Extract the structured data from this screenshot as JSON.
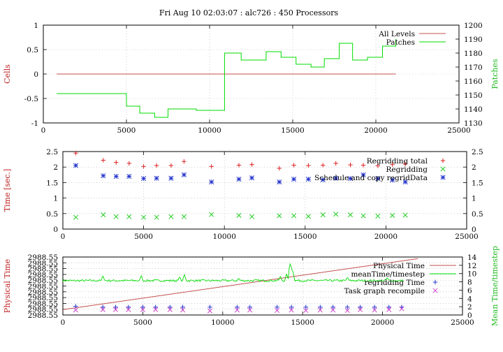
{
  "title": "Fri Aug 10 02:03:07 : alc726 : 450 Processors",
  "chart_data": [
    {
      "type": "line",
      "xlim": [
        0,
        25000
      ],
      "xticks": [
        "0",
        "5000",
        "10000",
        "15000",
        "20000",
        "25000"
      ],
      "ylabel": "Cells",
      "ylim": [
        -1,
        1
      ],
      "yticks": [
        "-1",
        "-0.5",
        "0",
        "0.5",
        "1"
      ],
      "y2label": "Patches",
      "y2lim": [
        1130,
        1200
      ],
      "y2ticks": [
        "1130",
        "1140",
        "1150",
        "1160",
        "1170",
        "1180",
        "1190",
        "1200"
      ],
      "grid": true,
      "legend_position": "top-right",
      "series": [
        {
          "name": "All Levels",
          "axis": "left",
          "color": "#c0504d",
          "style": "line",
          "x": [
            800,
            21200
          ],
          "y": [
            0,
            0
          ]
        },
        {
          "name": "Patches",
          "axis": "right",
          "color": "#00dd00",
          "style": "step",
          "x": [
            800,
            4100,
            5000,
            5800,
            6700,
            7500,
            9200,
            10900,
            11900,
            13400,
            14300,
            15200,
            16100,
            16900,
            17800,
            18600,
            19500,
            20400,
            21200
          ],
          "y": [
            1151,
            1151,
            1142,
            1137,
            1134,
            1140,
            1139,
            1180,
            1175,
            1181,
            1177,
            1172,
            1170,
            1176,
            1187,
            1175,
            1177,
            1185,
            1190
          ]
        }
      ]
    },
    {
      "type": "scatter",
      "xlim": [
        0,
        25000
      ],
      "xticks": [
        "0",
        "5000",
        "10000",
        "15000",
        "20000",
        "25000"
      ],
      "ylabel": "Time [sec.]",
      "ylim": [
        0,
        2.5
      ],
      "yticks": [
        "0",
        "0.5",
        "1",
        "1.5",
        "2",
        "2.5"
      ],
      "y2lim": [
        0,
        2.5
      ],
      "y2ticks": [
        "0",
        "0.5",
        "1",
        "1.5",
        "2",
        "2.5"
      ],
      "grid": true,
      "legend_position": "top-right",
      "x": [
        800,
        2500,
        3300,
        4100,
        5000,
        5800,
        6700,
        7500,
        9200,
        10900,
        11700,
        13400,
        14300,
        15200,
        16100,
        16900,
        17800,
        18600,
        19500,
        20400,
        21200
      ],
      "series": [
        {
          "name": "Regridding total",
          "marker": "plus",
          "color": "#dd2222",
          "y": [
            2.45,
            2.22,
            2.15,
            2.12,
            2.02,
            2.05,
            2.05,
            2.18,
            2.02,
            2.06,
            2.08,
            1.96,
            2.06,
            2.05,
            2.06,
            2.12,
            2.07,
            2.06,
            2.04,
            2.08,
            2.1
          ]
        },
        {
          "name": "Regridding",
          "marker": "cross",
          "color": "#22cc22",
          "y": [
            0.38,
            0.46,
            0.4,
            0.4,
            0.38,
            0.38,
            0.4,
            0.4,
            0.47,
            0.44,
            0.4,
            0.43,
            0.43,
            0.41,
            0.46,
            0.48,
            0.46,
            0.43,
            0.42,
            0.44,
            0.45
          ]
        },
        {
          "name": "Schedule and copy regridData",
          "marker": "star",
          "color": "#2233cc",
          "y": [
            2.05,
            1.72,
            1.7,
            1.7,
            1.63,
            1.64,
            1.64,
            1.75,
            1.52,
            1.61,
            1.65,
            1.52,
            1.61,
            1.61,
            1.59,
            1.64,
            1.63,
            1.75,
            1.63,
            1.58,
            1.52
          ]
        }
      ]
    },
    {
      "type": "line",
      "xlim": [
        0,
        25000
      ],
      "xticks": [
        "0",
        "5000",
        "10000",
        "15000",
        "20000",
        "25000"
      ],
      "ylabel": "Physical Time",
      "yticks": [
        "2988.55",
        "2988.55",
        "2988.55",
        "2988.55",
        "2988.55",
        "2988.55",
        "2988.55",
        "2988.55",
        "2988.55",
        "2988.55",
        "2988.55"
      ],
      "y2label": "Mean Time/timestep",
      "y2lim": [
        0,
        14
      ],
      "y2ticks": [
        "0",
        "2",
        "4",
        "6",
        "8",
        "10",
        "12",
        "14"
      ],
      "grid": true,
      "legend_position": "top-right",
      "series": [
        {
          "name": "Physical Time",
          "color": "#c0504d",
          "style": "line",
          "x": [
            0,
            22200
          ],
          "y": [
            1.3,
            13.6
          ]
        },
        {
          "name": "meanTime/timestep",
          "color": "#00dd00",
          "style": "noisy-line",
          "baseline": 8.3,
          "spikes": [
            [
              2500,
              9.6
            ],
            [
              4900,
              9.7
            ],
            [
              7300,
              9.3
            ],
            [
              7600,
              10.0
            ],
            [
              11000,
              8.9
            ],
            [
              13600,
              9.5
            ],
            [
              14000,
              10.2
            ],
            [
              14200,
              13.2
            ],
            [
              14300,
              12.3
            ],
            [
              14400,
              10.4
            ],
            [
              17800,
              9.2
            ],
            [
              20300,
              9.1
            ]
          ]
        },
        {
          "name": "regridding Time",
          "marker": "plus",
          "color": "#2233cc",
          "x": [
            800,
            2500,
            3300,
            4100,
            5000,
            5800,
            6700,
            7500,
            9200,
            10900,
            11700,
            13400,
            14300,
            15200,
            16100,
            16900,
            17800,
            18600,
            19500,
            20400,
            21200
          ],
          "y": [
            2.1,
            1.9,
            1.9,
            1.9,
            1.9,
            1.9,
            1.9,
            1.9,
            1.9,
            1.9,
            1.9,
            1.9,
            1.9,
            1.9,
            1.9,
            1.9,
            1.9,
            1.9,
            1.9,
            1.9,
            1.9
          ]
        },
        {
          "name": "Task graph recompile",
          "marker": "cross",
          "color": "#cc44cc",
          "x": [
            800,
            2500,
            3300,
            4100,
            5000,
            5800,
            6700,
            7500,
            9200,
            10900,
            11700,
            13400,
            14300,
            15200,
            16100,
            16900,
            17800,
            18600,
            19500,
            20400,
            21200
          ],
          "y": [
            1.2,
            1.3,
            1.3,
            1.3,
            1.3,
            1.3,
            1.3,
            1.2,
            1.0,
            1.2,
            1.2,
            1.1,
            1.2,
            1.1,
            1.2,
            1.2,
            1.1,
            1.3,
            1.2,
            1.3,
            1.5
          ]
        }
      ]
    }
  ]
}
